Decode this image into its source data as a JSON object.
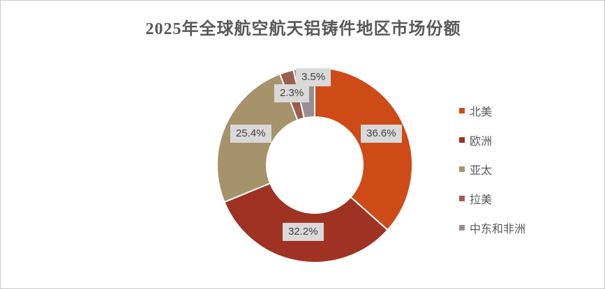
{
  "window": {
    "background_color": "#ffffff",
    "border_color": "#c9c9c9"
  },
  "chart_data": {
    "type": "pie",
    "subtype": "donut",
    "title": "2025年全球航空航天铝铸件地区市场份额",
    "title_color": "#595959",
    "start_angle_deg": 0,
    "direction": "clockwise",
    "donut_hole_ratio": 0.49,
    "slice_border_color": "#ffffff",
    "label_box_bg": "#d9d9d9",
    "label_text_color": "#404040",
    "legend_position": "right",
    "legend_text_color": "#595959",
    "segments": [
      {
        "label": "北美",
        "value": 36.6,
        "display_value": "36.6%",
        "color": "#ce4b17"
      },
      {
        "label": "欧洲",
        "value": 32.2,
        "display_value": "32.2%",
        "color": "#9f3223"
      },
      {
        "label": "亚太",
        "value": 25.4,
        "display_value": "25.4%",
        "color": "#a6926b"
      },
      {
        "label": "拉美",
        "value": 2.3,
        "display_value": "2.3%",
        "color": "#9c5f4e"
      },
      {
        "label": "中东和非洲",
        "value": 3.5,
        "display_value": "3.5%",
        "color": "#998d8f"
      }
    ]
  }
}
